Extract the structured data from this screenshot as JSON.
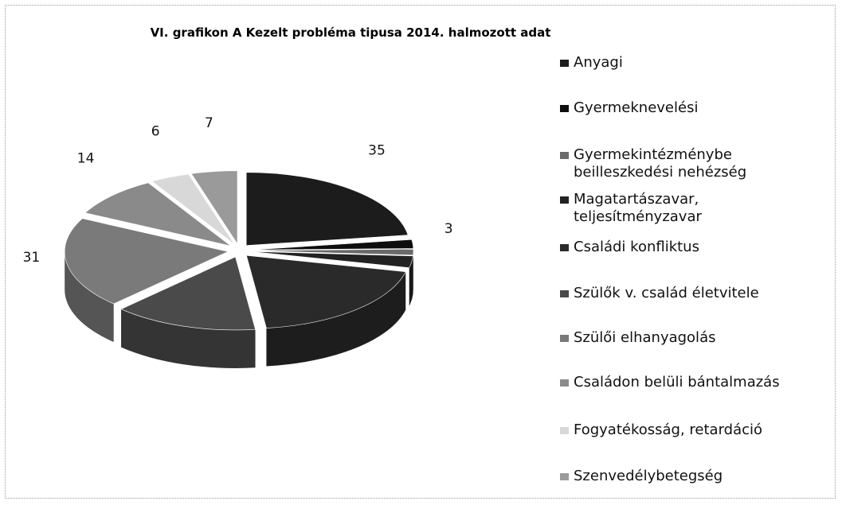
{
  "chart_data": {
    "type": "pie",
    "title": "VI. grafikon A Kezelt probléma tipusa 2014. halmozott adat",
    "categories": [
      "Anyagi",
      "Gyermeknevelési",
      "Gyermekintézménybe beilleszkedési nehézség",
      "Magatartászavar, teljesítményzavar",
      "Családi konfliktus",
      "Szülők v. család életvitele",
      "Szülői elhanyagolás",
      "Családon belüli bántalmazás",
      "Fogyatékosság, retardáció",
      "Szenvedélybetegség"
    ],
    "values": [
      35,
      3,
      2,
      4,
      30,
      22,
      31,
      14,
      6,
      7
    ],
    "value_labels": [
      "35",
      "3",
      null,
      null,
      null,
      null,
      "31",
      "14",
      "6",
      "7"
    ],
    "colors": [
      "#1c1c1c",
      "#0e0e0e",
      "#6a6a6a",
      "#222222",
      "#2a2a2a",
      "#4a4a4a",
      "#7a7a7a",
      "#8a8a8a",
      "#d8d8d8",
      "#9a9a9a"
    ],
    "legend": "right"
  }
}
